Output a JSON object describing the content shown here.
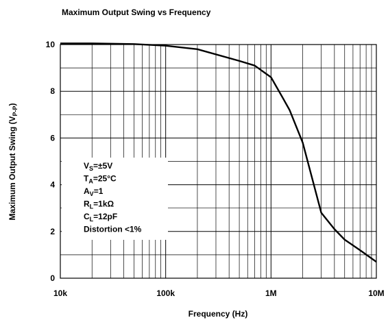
{
  "chart_data": {
    "type": "line",
    "title": "Maximum Output Swing vs Frequency",
    "xlabel": "Frequency (Hz)",
    "ylabel": {
      "text": "Maximum Output Swing (V",
      "sub": "P-P",
      "after": ")"
    },
    "x": [
      10000,
      20000,
      50000,
      100000,
      200000,
      500000,
      700000,
      1000000,
      1300000,
      1500000,
      2000000,
      3000000,
      4000000,
      5000000,
      7000000,
      10000000
    ],
    "series": [
      {
        "name": "Output Swing",
        "color": "#000000",
        "values": [
          10.05,
          10.05,
          10.02,
          9.95,
          9.8,
          9.3,
          9.1,
          8.6,
          7.7,
          7.2,
          5.8,
          2.8,
          2.1,
          1.65,
          1.2,
          0.7
        ]
      }
    ],
    "xscale": "log",
    "xlim": [
      10000,
      10000000
    ],
    "xticks": [
      {
        "value": 10000,
        "label": "10k"
      },
      {
        "value": 100000,
        "label": "100k"
      },
      {
        "value": 1000000,
        "label": "1M"
      },
      {
        "value": 10000000,
        "label": "10M"
      }
    ],
    "xminor_ticks": [
      20000,
      30000,
      40000,
      50000,
      60000,
      70000,
      80000,
      90000,
      200000,
      300000,
      400000,
      500000,
      600000,
      700000,
      800000,
      900000,
      2000000,
      3000000,
      4000000,
      5000000,
      6000000,
      7000000,
      8000000,
      9000000
    ],
    "ylim": [
      0,
      10
    ],
    "yticks": [
      0,
      2,
      4,
      6,
      8,
      10
    ],
    "yminor_ticks": [
      1,
      3,
      5,
      7,
      9
    ],
    "grid": true,
    "annotations": [
      {
        "main": "V",
        "sub": "S",
        "rest": "=±5V"
      },
      {
        "main": "T",
        "sub": "A",
        "rest": "=25°C"
      },
      {
        "main": "A",
        "sub": "V",
        "rest": "=1"
      },
      {
        "main": "R",
        "sub": "L",
        "rest": "=1kΩ"
      },
      {
        "main": "C",
        "sub": "L",
        "rest": "=12pF"
      },
      {
        "main": "Distortion <1%"
      }
    ]
  }
}
